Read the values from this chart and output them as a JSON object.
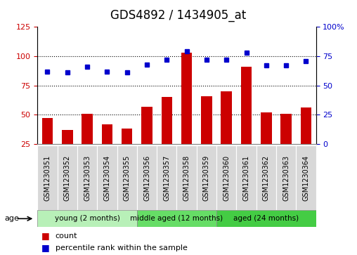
{
  "title": "GDS4892 / 1434905_at",
  "samples": [
    "GSM1230351",
    "GSM1230352",
    "GSM1230353",
    "GSM1230354",
    "GSM1230355",
    "GSM1230356",
    "GSM1230357",
    "GSM1230358",
    "GSM1230359",
    "GSM1230360",
    "GSM1230361",
    "GSM1230362",
    "GSM1230363",
    "GSM1230364"
  ],
  "counts": [
    47,
    37,
    51,
    42,
    38,
    57,
    65,
    103,
    66,
    70,
    91,
    52,
    51,
    56
  ],
  "percentiles": [
    62,
    61,
    66,
    62,
    61,
    68,
    72,
    79,
    72,
    72,
    78,
    67,
    67,
    71
  ],
  "bar_color": "#cc0000",
  "dot_color": "#0000cc",
  "ylim_left": [
    25,
    125
  ],
  "ylim_right": [
    0,
    100
  ],
  "yticks_left": [
    25,
    50,
    75,
    100,
    125
  ],
  "yticks_right": [
    0,
    25,
    50,
    75,
    100
  ],
  "groups": [
    {
      "label": "young (2 months)",
      "start": 0,
      "end": 5,
      "color": "#b8f0b8"
    },
    {
      "label": "middle aged (12 months)",
      "start": 5,
      "end": 9,
      "color": "#66dd66"
    },
    {
      "label": "aged (24 months)",
      "start": 9,
      "end": 14,
      "color": "#44cc44"
    }
  ],
  "age_label": "age",
  "legend_count_label": "count",
  "legend_percentile_label": "percentile rank within the sample",
  "background_color": "#ffffff",
  "plot_bg_color": "#ffffff",
  "label_bg_color": "#d8d8d8",
  "title_fontsize": 12,
  "tick_fontsize": 7,
  "label_fontsize": 8,
  "bar_width": 0.55
}
